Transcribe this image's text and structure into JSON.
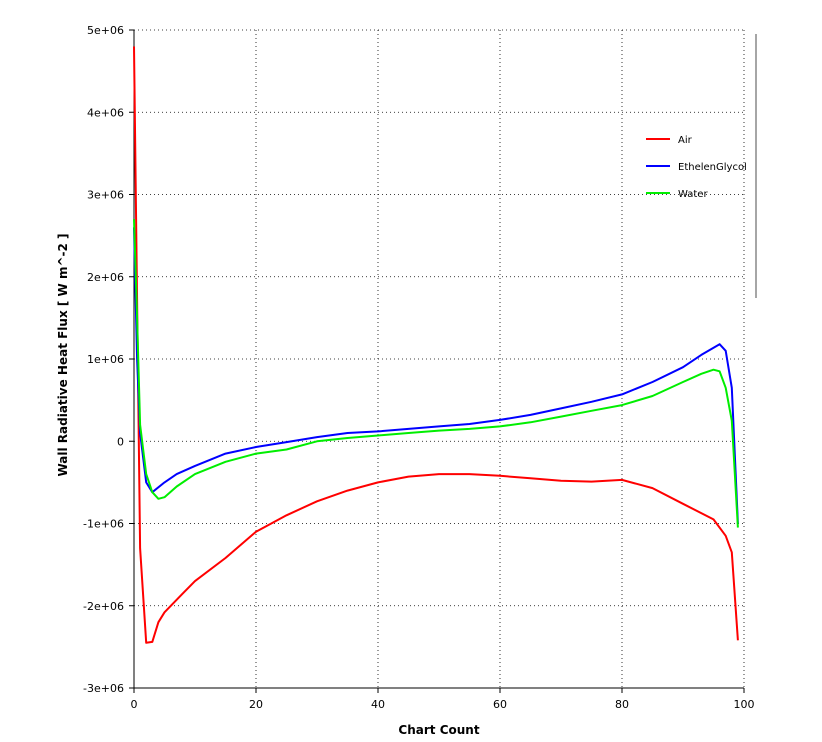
{
  "chart_data": {
    "type": "line",
    "xlabel": "Chart Count",
    "ylabel": "Wall Radiative Heat Flux [ W m^-2 ]",
    "xlim": [
      0,
      100
    ],
    "ylim": [
      -3000000,
      5000000
    ],
    "x_ticks": [
      0,
      20,
      40,
      60,
      80,
      100
    ],
    "x_tick_labels": [
      "0",
      "20",
      "40",
      "60",
      "80",
      "100"
    ],
    "y_ticks": [
      5000000,
      4000000,
      3000000,
      2000000,
      1000000,
      0,
      -1000000,
      -2000000,
      -3000000
    ],
    "y_tick_labels": [
      "5e+06",
      "4e+06",
      "3e+06",
      "2e+06",
      "1e+06",
      "0",
      "-1e+06",
      "-2e+06",
      "-3e+06"
    ],
    "grid": true,
    "legend_position": "top-right",
    "series": [
      {
        "name": "Air",
        "color": "#ff0000",
        "x": [
          0,
          1,
          2,
          3,
          4,
          5,
          8,
          10,
          15,
          20,
          25,
          30,
          35,
          40,
          45,
          50,
          55,
          60,
          65,
          70,
          75,
          80,
          85,
          90,
          95,
          97,
          98,
          99
        ],
        "y": [
          4800000,
          -1300000,
          -2450000,
          -2440000,
          -2200000,
          -2080000,
          -1850000,
          -1700000,
          -1420000,
          -1100000,
          -900000,
          -730000,
          -600000,
          -500000,
          -430000,
          -400000,
          -400000,
          -420000,
          -450000,
          -480000,
          -490000,
          -470000,
          -570000,
          -760000,
          -950000,
          -1150000,
          -1350000,
          -2420000
        ]
      },
      {
        "name": "EthelenGlycol",
        "color": "#0000ff",
        "x": [
          0,
          0.5,
          1,
          2,
          3,
          5,
          7,
          10,
          15,
          20,
          25,
          30,
          35,
          40,
          45,
          50,
          55,
          60,
          65,
          70,
          75,
          80,
          85,
          90,
          93,
          96,
          97,
          98,
          99
        ],
        "y": [
          2600000,
          1000000,
          100000,
          -500000,
          -620000,
          -500000,
          -400000,
          -300000,
          -150000,
          -70000,
          -10000,
          50000,
          100000,
          120000,
          150000,
          180000,
          210000,
          260000,
          320000,
          400000,
          480000,
          570000,
          720000,
          900000,
          1050000,
          1180000,
          1100000,
          650000,
          -1000000
        ]
      },
      {
        "name": "Water",
        "color": "#00ee00",
        "x": [
          0,
          0.5,
          1,
          2,
          3,
          4,
          5,
          7,
          10,
          15,
          20,
          25,
          30,
          35,
          40,
          45,
          50,
          55,
          60,
          65,
          70,
          75,
          80,
          85,
          90,
          93,
          95,
          96,
          97,
          98,
          99
        ],
        "y": [
          2700000,
          1500000,
          200000,
          -400000,
          -620000,
          -700000,
          -680000,
          -550000,
          -400000,
          -250000,
          -150000,
          -100000,
          0,
          40000,
          70000,
          100000,
          130000,
          150000,
          180000,
          230000,
          300000,
          370000,
          440000,
          550000,
          720000,
          820000,
          870000,
          850000,
          650000,
          250000,
          -1050000
        ]
      }
    ]
  }
}
